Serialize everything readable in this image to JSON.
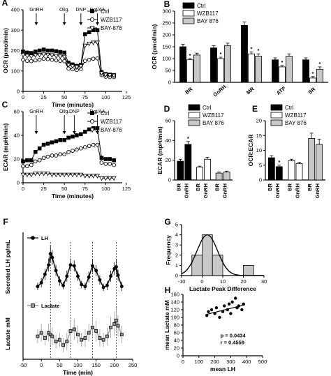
{
  "colors": {
    "ink": "#000000",
    "white": "#ffffff",
    "gray": "#c8c8c8",
    "lactate": "#999999"
  },
  "chart_data": [
    {
      "id": "A",
      "type": "line",
      "panel_label": "A",
      "xlabel": "Time (minutes)",
      "ylabel": "OCR (pmol/min)",
      "xlim": [
        0,
        120
      ],
      "ylim": [
        0,
        400
      ],
      "xticks": [
        "0",
        "25",
        "50",
        "75",
        "100",
        "125"
      ],
      "xtick_values": [
        0,
        25,
        50,
        75,
        100,
        125
      ],
      "yticks": [
        "0",
        "100",
        "200",
        "300",
        "400"
      ],
      "ytick_values": [
        0,
        100,
        200,
        300,
        400
      ],
      "annotations": [
        {
          "label": "GnRH",
          "x": 16
        },
        {
          "label": "Olig.",
          "x": 50
        },
        {
          "label": "DNP",
          "x": 70
        },
        {
          "label": "Rot/AA",
          "x": 90
        }
      ],
      "series": [
        {
          "name": "Ctrl",
          "marker": "square",
          "x": [
            0,
            5,
            10,
            15,
            20,
            25,
            30,
            35,
            40,
            45,
            50,
            55,
            60,
            65,
            70,
            75,
            80,
            85,
            90,
            95,
            100,
            105,
            110
          ],
          "y": [
            195,
            190,
            188,
            195,
            200,
            205,
            200,
            200,
            197,
            193,
            190,
            140,
            132,
            125,
            130,
            280,
            290,
            300,
            300,
            95,
            85,
            82,
            80
          ]
        },
        {
          "name": "WZB117",
          "marker": "circle",
          "x": [
            0,
            5,
            10,
            15,
            20,
            25,
            30,
            35,
            40,
            45,
            50,
            55,
            60,
            65,
            70,
            75,
            80,
            85,
            90,
            95,
            100,
            105,
            110
          ],
          "y": [
            155,
            150,
            148,
            152,
            155,
            160,
            158,
            155,
            152,
            150,
            148,
            112,
            108,
            105,
            110,
            150,
            155,
            160,
            162,
            80,
            72,
            70,
            70
          ]
        },
        {
          "name": "BAY-876",
          "marker": "triangle-down",
          "x": [
            0,
            5,
            10,
            15,
            20,
            25,
            30,
            35,
            40,
            45,
            50,
            55,
            60,
            65,
            70,
            75,
            80,
            85,
            90,
            95,
            100,
            105,
            110
          ],
          "y": [
            180,
            175,
            172,
            178,
            180,
            182,
            180,
            178,
            175,
            172,
            170,
            130,
            125,
            120,
            125,
            225,
            235,
            240,
            240,
            90,
            82,
            80,
            78
          ]
        }
      ]
    },
    {
      "id": "B",
      "type": "bar",
      "panel_label": "B",
      "ylabel": "OCR (pmol/min)",
      "ylim": [
        0,
        300
      ],
      "yticks": [
        "0",
        "50",
        "100",
        "150",
        "200",
        "250",
        "300"
      ],
      "ytick_values": [
        0,
        50,
        100,
        150,
        200,
        250,
        300
      ],
      "categories": [
        "BR",
        "GnRH",
        "MR",
        "ATP",
        "SR"
      ],
      "series": [
        {
          "name": "Ctrl",
          "fill": "black",
          "values": [
            150,
            145,
            240,
            95,
            95
          ],
          "errors": [
            10,
            10,
            14,
            8,
            8
          ]
        },
        {
          "name": "WZB117",
          "fill": "white",
          "values": [
            95,
            100,
            120,
            65,
            18
          ],
          "errors": [
            5,
            6,
            8,
            6,
            6
          ]
        },
        {
          "name": "BAY 876",
          "fill": "gray",
          "values": [
            115,
            155,
            110,
            110,
            55
          ],
          "errors": [
            8,
            10,
            10,
            10,
            10
          ]
        }
      ],
      "significance": [
        {
          "category": 0,
          "series": 1
        },
        {
          "category": 1,
          "series": 1
        },
        {
          "category": 2,
          "series": 1
        },
        {
          "category": 2,
          "series": 2
        },
        {
          "category": 3,
          "series": 1
        },
        {
          "category": 4,
          "series": 1
        },
        {
          "category": 4,
          "series": 2
        }
      ],
      "star": "*"
    },
    {
      "id": "C",
      "type": "line",
      "panel_label": "C",
      "xlabel": "Time (minutes)",
      "ylabel": "ECAR (mpH/min)",
      "xlim": [
        0,
        120
      ],
      "ylim": [
        0,
        60
      ],
      "xticks": [
        "0",
        "25",
        "50",
        "75",
        "100",
        "125"
      ],
      "xtick_values": [
        0,
        25,
        50,
        75,
        100,
        125
      ],
      "yticks": [
        "0",
        "20",
        "40",
        "60"
      ],
      "ytick_values": [
        0,
        20,
        40,
        60
      ],
      "annotations": [
        {
          "label": "GnRH",
          "x": 16
        },
        {
          "label": "Olig.",
          "x": 50
        },
        {
          "label": "DNP",
          "x": 62
        },
        {
          "label": "Rot/AA",
          "x": 90
        }
      ],
      "series": [
        {
          "name": "Ctrl",
          "marker": "square",
          "x": [
            0,
            5,
            10,
            15,
            20,
            25,
            30,
            35,
            40,
            45,
            50,
            55,
            60,
            65,
            70,
            75,
            80,
            85,
            90,
            95,
            100,
            105,
            110
          ],
          "y": [
            18,
            19,
            19,
            26,
            29,
            32,
            33,
            34,
            35,
            36,
            36,
            38,
            39,
            40,
            41,
            43,
            45,
            46,
            46,
            21,
            20,
            20,
            19
          ]
        },
        {
          "name": "WZB117",
          "marker": "circle",
          "x": [
            0,
            5,
            10,
            15,
            20,
            25,
            30,
            35,
            40,
            45,
            50,
            55,
            60,
            65,
            70,
            75,
            80,
            85,
            90,
            95,
            100,
            105,
            110
          ],
          "y": [
            14,
            14,
            15,
            18,
            19,
            21,
            22,
            23,
            23,
            24,
            24,
            26,
            27,
            28,
            29,
            30,
            31,
            32,
            32,
            17,
            16,
            16,
            15
          ]
        },
        {
          "name": "BAY-876",
          "marker": "triangle-down",
          "x": [
            0,
            5,
            10,
            15,
            20,
            25,
            30,
            35,
            40,
            45,
            50,
            55,
            60,
            65,
            70,
            75,
            80,
            85,
            90,
            95,
            100,
            105,
            110
          ],
          "y": [
            7,
            7,
            7,
            8,
            8,
            8,
            8,
            7,
            7,
            7,
            7,
            7,
            7,
            7,
            7,
            6,
            6,
            6,
            6,
            4,
            4,
            4,
            4
          ]
        }
      ]
    },
    {
      "id": "D",
      "type": "bar",
      "panel_label": "D",
      "ylabel": "ECAR (mpH/min)",
      "ylim": [
        0,
        60
      ],
      "yticks": [
        "0",
        "20",
        "40",
        "60"
      ],
      "ytick_values": [
        0,
        20,
        40,
        60
      ],
      "series": [
        {
          "name": "Ctrl",
          "fill": "black"
        },
        {
          "name": "WZB117",
          "fill": "white"
        },
        {
          "name": "BAY 876",
          "fill": "gray"
        }
      ],
      "groups": [
        {
          "fill": "black",
          "bars": [
            {
              "label": "BR",
              "value": 19,
              "error": 2
            },
            {
              "label": "GnRH",
              "value": 36,
              "error": 3
            }
          ]
        },
        {
          "fill": "white",
          "bars": [
            {
              "label": "BR",
              "value": 13,
              "error": 1
            },
            {
              "label": "GnRH",
              "value": 21,
              "error": 2
            }
          ]
        },
        {
          "fill": "gray",
          "bars": [
            {
              "label": "BR",
              "value": 7,
              "error": 1
            },
            {
              "label": "GnRH",
              "value": 8,
              "error": 1
            }
          ]
        }
      ],
      "significance": [
        {
          "group": 0,
          "bar": 1
        }
      ],
      "star": "*"
    },
    {
      "id": "E",
      "type": "bar",
      "panel_label": "E",
      "ylabel": "OCR:ECAR",
      "ylim": [
        0,
        20
      ],
      "yticks": [
        "0",
        "5",
        "10",
        "15",
        "20"
      ],
      "ytick_values": [
        0,
        5,
        10,
        15,
        20
      ],
      "series": [
        {
          "name": "Ctrl",
          "fill": "black"
        },
        {
          "name": "WZB117",
          "fill": "white"
        },
        {
          "name": "BAY 876",
          "fill": "gray"
        }
      ],
      "groups": [
        {
          "fill": "black",
          "bars": [
            {
              "label": "BR",
              "value": 7.5,
              "error": 0.7
            },
            {
              "label": "GnRH",
              "value": 4.5,
              "error": 0.5
            }
          ]
        },
        {
          "fill": "white",
          "bars": [
            {
              "label": "BR",
              "value": 6.5,
              "error": 0.5
            },
            {
              "label": "GnRH",
              "value": 5.5,
              "error": 0.5
            }
          ]
        },
        {
          "fill": "gray",
          "bars": [
            {
              "label": "BR",
              "value": 14,
              "error": 1.8
            },
            {
              "label": "GnRH",
              "value": 12,
              "error": 1.8
            }
          ]
        }
      ],
      "significance": [
        {
          "group": 0,
          "bar": 1
        }
      ],
      "star": "*"
    },
    {
      "id": "F",
      "type": "line",
      "panel_label": "F",
      "xlabel": "Time (min)",
      "ylabel_top": "Secreted LH pg/mL",
      "ylabel_bottom": "Lactate mM",
      "xlim": [
        -50,
        250
      ],
      "xticks": [
        "-50",
        "0",
        "50",
        "100",
        "150",
        "200",
        "250"
      ],
      "xtick_values": [
        -50,
        0,
        50,
        100,
        150,
        200,
        250
      ],
      "peaks": [
        25,
        80,
        140,
        205
      ],
      "series": [
        {
          "name": "LH",
          "marker": "circle",
          "fill": "black",
          "x": [
            -10,
            0,
            10,
            20,
            25,
            30,
            40,
            50,
            60,
            70,
            80,
            90,
            100,
            110,
            120,
            130,
            140,
            150,
            160,
            170,
            180,
            190,
            200,
            205,
            210,
            220
          ],
          "y": [
            185,
            205,
            250,
            300,
            360,
            340,
            270,
            215,
            190,
            240,
            300,
            295,
            240,
            195,
            185,
            235,
            295,
            270,
            220,
            180,
            190,
            240,
            280,
            290,
            245,
            185
          ],
          "errors": [
            20,
            25,
            30,
            35,
            45,
            40,
            30,
            25,
            20,
            30,
            35,
            30,
            25,
            20,
            20,
            30,
            35,
            30,
            25,
            20,
            25,
            30,
            35,
            40,
            30,
            25
          ]
        },
        {
          "name": "Lactate",
          "marker": "square",
          "fill": "gray",
          "x": [
            -10,
            0,
            10,
            20,
            25,
            30,
            40,
            50,
            60,
            70,
            80,
            90,
            100,
            110,
            120,
            130,
            140,
            150,
            160,
            170,
            180,
            190,
            200,
            205,
            210,
            220
          ],
          "y": [
            105,
            115,
            100,
            115,
            110,
            105,
            90,
            95,
            80,
            90,
            120,
            125,
            110,
            95,
            100,
            115,
            130,
            120,
            100,
            95,
            105,
            130,
            140,
            150,
            135,
            110
          ],
          "errors": [
            20,
            25,
            20,
            25,
            30,
            25,
            20,
            20,
            20,
            25,
            30,
            30,
            25,
            20,
            25,
            25,
            30,
            30,
            25,
            20,
            25,
            30,
            35,
            35,
            30,
            25
          ]
        }
      ]
    },
    {
      "id": "G",
      "type": "bar",
      "panel_label": "G",
      "xlabel": "Lactate Peak Difference",
      "ylabel": "Frequency",
      "xlim": [
        -10,
        30
      ],
      "ylim": [
        0,
        5
      ],
      "xticks": [
        "-10",
        "0",
        "10",
        "20",
        "30"
      ],
      "xtick_values": [
        -10,
        0,
        10,
        20,
        30
      ],
      "yticks": [
        "0",
        "1",
        "2",
        "3",
        "4",
        "5"
      ],
      "ytick_values": [
        0,
        1,
        2,
        3,
        4,
        5
      ],
      "bin_width": 5,
      "bins": [
        {
          "center": -2.5,
          "count": 2
        },
        {
          "center": 2.5,
          "count": 4
        },
        {
          "center": 7.5,
          "count": 2
        },
        {
          "center": 12.5,
          "count": 0
        },
        {
          "center": 17.5,
          "count": 0
        },
        {
          "center": 22.5,
          "count": 1
        }
      ],
      "fit": {
        "amplitude": 4,
        "mean": 2.5,
        "sd": 5
      }
    },
    {
      "id": "H",
      "type": "scatter",
      "panel_label": "H",
      "xlabel": "mean LH",
      "ylabel": "mean Lactate mM",
      "xlim": [
        0,
        500
      ],
      "ylim": [
        0,
        160
      ],
      "xticks": [
        "0",
        "100",
        "200",
        "300",
        "400",
        "500"
      ],
      "xtick_values": [
        0,
        100,
        200,
        300,
        400,
        500
      ],
      "yticks": [
        "0",
        "20",
        "40",
        "60",
        "80",
        "100",
        "120",
        "140",
        "160"
      ],
      "ytick_values": [
        0,
        20,
        40,
        60,
        80,
        100,
        120,
        140,
        160
      ],
      "points": [
        [
          150,
          105
        ],
        [
          160,
          115
        ],
        [
          180,
          120
        ],
        [
          200,
          110
        ],
        [
          210,
          125
        ],
        [
          230,
          100
        ],
        [
          250,
          115
        ],
        [
          260,
          130
        ],
        [
          280,
          120
        ],
        [
          290,
          135
        ],
        [
          300,
          110
        ],
        [
          310,
          140
        ],
        [
          330,
          150
        ],
        [
          340,
          125
        ],
        [
          350,
          130
        ],
        [
          370,
          120
        ],
        [
          380,
          135
        ]
      ],
      "fit_line": [
        [
          150,
          108
        ],
        [
          390,
          133
        ]
      ],
      "stats": [
        "p = 0.0434",
        "r = 0.4559"
      ]
    }
  ]
}
